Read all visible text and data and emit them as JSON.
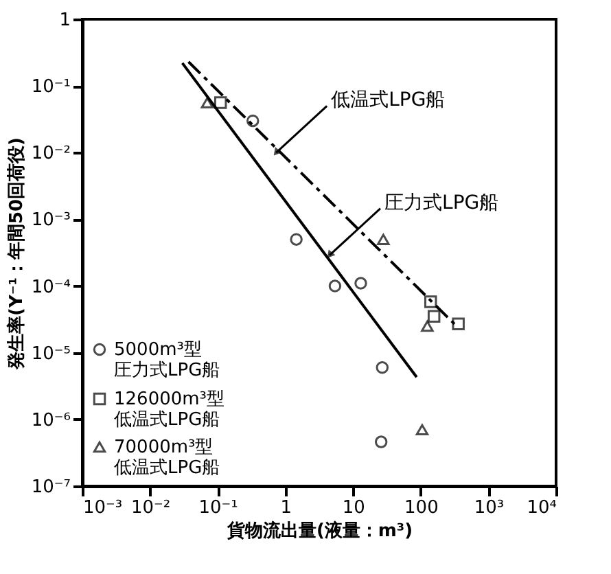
{
  "chart_data": {
    "type": "scatter",
    "xlabel": "貨物流出量(液量：m³)",
    "ylabel": "発生率(Y⁻¹：年間50回荷役)",
    "log": "xy",
    "grid": false,
    "legend": "bottom left",
    "xlim": [
      0.001,
      10000
    ],
    "ylim": [
      1e-07,
      1
    ],
    "xticks": [
      {
        "value": 0.001,
        "label": "10⁻³"
      },
      {
        "value": 0.01,
        "label": "10⁻²"
      },
      {
        "value": 0.1,
        "label": "10⁻¹"
      },
      1,
      10,
      100,
      {
        "value": 1000,
        "label": "10³"
      },
      {
        "value": 10000,
        "label": "10⁴"
      }
    ],
    "yticks": [
      {
        "value": 1e-07,
        "label": "10⁻⁷"
      },
      {
        "value": 1e-06,
        "label": "10⁻⁶"
      },
      {
        "value": 1e-05,
        "label": "10⁻⁵"
      },
      {
        "value": 0.0001,
        "label": "10⁻⁴"
      },
      {
        "value": 0.001,
        "label": "10⁻³"
      },
      {
        "value": 0.01,
        "label": "10⁻²"
      },
      {
        "value": 0.1,
        "label": "10⁻¹"
      },
      1
    ],
    "series": [
      {
        "name": "5000m³型圧力式LPG船",
        "marker": "circle",
        "color": "#000000",
        "x": [
          0.33,
          1.45,
          5.4,
          13,
          27,
          26
        ],
        "values": [
          0.03,
          0.0005,
          0.0001,
          0.00011,
          6e-06,
          4.6e-07
        ]
      },
      {
        "name": "126000m³型低温式LPG船",
        "marker": "square",
        "color": "#000000",
        "x": [
          0.11,
          140,
          157,
          360
        ],
        "values": [
          0.056,
          5.8e-05,
          3.5e-05,
          2.7e-05
        ]
      },
      {
        "name": "70000m³型低温式LPG船",
        "marker": "triangle",
        "color": "#000000",
        "x": [
          0.07,
          28,
          125,
          105
        ],
        "values": [
          0.056,
          0.0005,
          2.5e-05,
          7e-07
        ]
      },
      {
        "type": "line",
        "line_style": "solid",
        "color": "#000000",
        "x": [
          0.03,
          87
        ],
        "values": [
          0.22,
          4.3e-06
        ]
      },
      {
        "type": "line",
        "line_style": "dashed",
        "color": "#000000",
        "x": [
          0.037,
          340
        ],
        "values": [
          0.23,
          2.5e-05
        ]
      }
    ],
    "annotations": [
      {
        "text": "低温式LPG船",
        "x": 0.73,
        "y": 0.01
      },
      {
        "text": "圧力式LPG船",
        "x": 4.5,
        "y": 0.00029
      }
    ]
  }
}
